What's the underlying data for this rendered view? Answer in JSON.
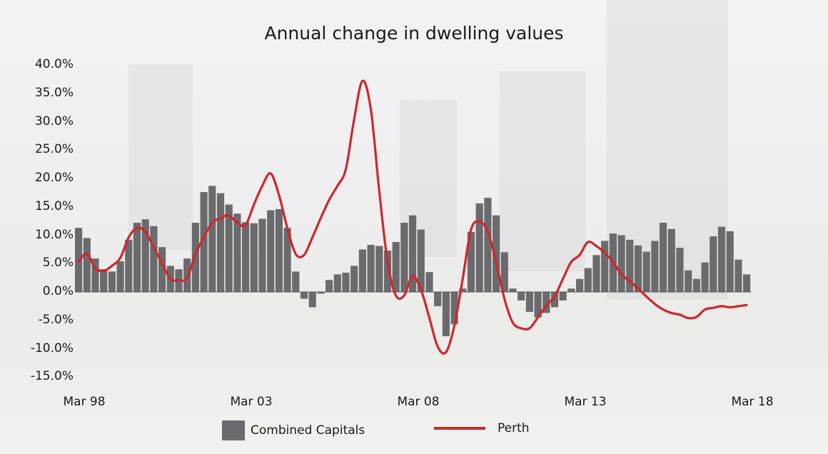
{
  "chart_data": {
    "type": "bar+line",
    "title": "Annual change in dwelling values",
    "xlabel": "",
    "ylabel": "",
    "ylim": [
      -15,
      40
    ],
    "y_ticks": [
      "40.0%",
      "35.0%",
      "30.0%",
      "25.0%",
      "20.0%",
      "15.0%",
      "10.0%",
      "5.0%",
      "0.0%",
      "-5.0%",
      "-10.0%",
      "-15.0%"
    ],
    "y_tick_values": [
      40,
      35,
      30,
      25,
      20,
      15,
      10,
      5,
      0,
      -5,
      -10,
      -15
    ],
    "x_ticks": [
      "Mar 98",
      "Mar 03",
      "Mar 08",
      "Mar 13",
      "Mar 18"
    ],
    "x_tick_index": [
      0,
      20,
      40,
      60,
      80
    ],
    "x_frequency": "quarterly, Mar 1998 to Mar 2018",
    "grid": false,
    "legend_position": "bottom",
    "series": [
      {
        "name": "Combined Capitals",
        "type": "bar",
        "color": "#6b6b6e",
        "values": [
          11.3,
          9.5,
          5.9,
          4.0,
          3.6,
          5.4,
          9.2,
          12.2,
          12.8,
          11.6,
          7.9,
          4.6,
          4.0,
          5.9,
          12.2,
          17.6,
          18.7,
          17.4,
          15.4,
          13.8,
          12.3,
          12.1,
          12.9,
          14.4,
          14.6,
          11.3,
          3.6,
          -1.2,
          -2.7,
          -0.3,
          2.1,
          3.1,
          3.4,
          4.6,
          7.5,
          8.3,
          8.1,
          7.3,
          8.8,
          12.2,
          13.5,
          11.0,
          3.5,
          -2.5,
          -7.8,
          -5.7,
          0.6,
          10.6,
          15.6,
          16.6,
          13.5,
          7.0,
          0.6,
          -1.5,
          -3.5,
          -4.5,
          -3.7,
          -2.7,
          -1.5,
          0.6,
          2.3,
          4.2,
          6.5,
          9.0,
          10.3,
          10.0,
          9.2,
          8.2,
          7.1,
          9.0,
          12.2,
          11.1,
          7.8,
          3.8,
          2.3,
          5.2,
          9.8,
          11.5,
          10.7,
          5.7,
          3.1
        ]
      },
      {
        "name": "Perth",
        "type": "line",
        "color": "#d0262d",
        "values": [
          5.4,
          6.7,
          4.2,
          3.7,
          4.6,
          6.0,
          9.6,
          11.3,
          10.6,
          7.9,
          5.1,
          2.3,
          2.1,
          2.4,
          6.7,
          9.6,
          12.2,
          13.0,
          13.5,
          12.2,
          11.8,
          15.4,
          18.7,
          20.9,
          17.1,
          11.3,
          6.7,
          6.5,
          9.6,
          13.0,
          16.2,
          18.7,
          21.6,
          30.4,
          37.2,
          32.2,
          17.9,
          5.4,
          -0.6,
          -0.6,
          2.8,
          0.4,
          -4.5,
          -9.6,
          -10.6,
          -6.0,
          2.3,
          11.0,
          12.4,
          10.7,
          5.3,
          -1.2,
          -5.4,
          -6.4,
          -6.4,
          -4.5,
          -2.4,
          -0.8,
          2.3,
          5.3,
          6.5,
          8.8,
          8.1,
          6.9,
          5.3,
          3.1,
          1.9,
          0.6,
          -0.8,
          -2.1,
          -3.1,
          -3.7,
          -4.0,
          -4.6,
          -4.4,
          -3.1,
          -2.8,
          -2.5,
          -2.7,
          -2.5,
          -2.3
        ]
      }
    ]
  }
}
